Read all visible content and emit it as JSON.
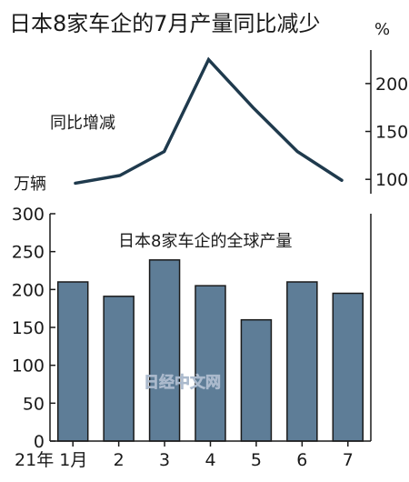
{
  "title": "日本8家车企的7月产量同比减少",
  "watermark": "日经中文网",
  "chart_data": [
    {
      "type": "line",
      "label": "同比增减",
      "unit": "%",
      "x": [
        "21年1月",
        "2",
        "3",
        "4",
        "5",
        "6",
        "7"
      ],
      "values": [
        96,
        104,
        129,
        225,
        175,
        129,
        99
      ],
      "yticks": [
        100,
        150,
        200
      ],
      "ylim": [
        85,
        235
      ],
      "axis_side": "right",
      "color": "#1f3a4d"
    },
    {
      "type": "bar",
      "title": "日本8家车企的全球产量",
      "ylabel": "万辆",
      "categories": [
        "21年 1月",
        "2",
        "3",
        "4",
        "5",
        "6",
        "7"
      ],
      "values": [
        210,
        191,
        239,
        205,
        160,
        210,
        195
      ],
      "yticks": [
        0,
        50,
        100,
        150,
        200,
        250,
        300
      ],
      "ylim": [
        0,
        300
      ],
      "bar_color": "#5e7d97",
      "bar_edge": "#1a1a1a"
    }
  ]
}
